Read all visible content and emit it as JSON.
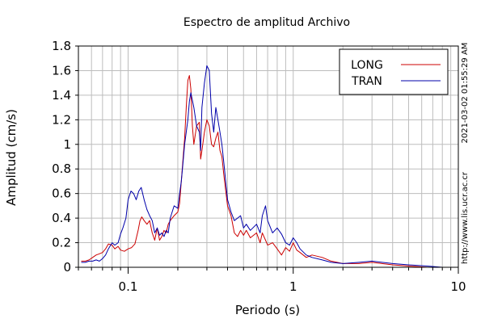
{
  "chart_data": {
    "type": "line",
    "title": "Espectro de amplitud Archivo",
    "xlabel": "Periodo (s)",
    "ylabel": "Amplitud (cm/s)",
    "x_scale": "log",
    "xlim": [
      0.05,
      10
    ],
    "ylim": [
      0,
      1.8
    ],
    "grid": true,
    "legend_position": "top-right",
    "x_ticks": [
      {
        "value": 0.1,
        "label": "0.1"
      },
      {
        "value": 1,
        "label": "1"
      },
      {
        "value": 10,
        "label": "10"
      }
    ],
    "y_ticks": [
      {
        "value": 0,
        "label": "0"
      },
      {
        "value": 0.2,
        "label": "0.2"
      },
      {
        "value": 0.4,
        "label": "0.4"
      },
      {
        "value": 0.6,
        "label": "0.6"
      },
      {
        "value": 0.8,
        "label": "0.8"
      },
      {
        "value": 1.0,
        "label": "1"
      },
      {
        "value": 1.2,
        "label": "1.2"
      },
      {
        "value": 1.4,
        "label": "1.4"
      },
      {
        "value": 1.6,
        "label": "1.6"
      },
      {
        "value": 1.8,
        "label": "1.8"
      }
    ],
    "series": [
      {
        "name": "LONG",
        "color": "#cc0000",
        "x": [
          0.052,
          0.055,
          0.058,
          0.061,
          0.064,
          0.067,
          0.07,
          0.073,
          0.076,
          0.08,
          0.083,
          0.087,
          0.09,
          0.095,
          0.1,
          0.105,
          0.11,
          0.115,
          0.118,
          0.121,
          0.125,
          0.13,
          0.135,
          0.14,
          0.145,
          0.15,
          0.155,
          0.16,
          0.165,
          0.17,
          0.175,
          0.18,
          0.19,
          0.2,
          0.205,
          0.21,
          0.215,
          0.22,
          0.225,
          0.23,
          0.235,
          0.24,
          0.245,
          0.25,
          0.26,
          0.27,
          0.275,
          0.28,
          0.29,
          0.3,
          0.31,
          0.32,
          0.33,
          0.34,
          0.35,
          0.36,
          0.37,
          0.38,
          0.4,
          0.42,
          0.44,
          0.46,
          0.48,
          0.5,
          0.52,
          0.55,
          0.6,
          0.63,
          0.65,
          0.68,
          0.7,
          0.75,
          0.8,
          0.85,
          0.9,
          0.95,
          1.0,
          1.05,
          1.1,
          1.2,
          1.3,
          1.5,
          1.7,
          2.0,
          2.5,
          3.0,
          4.0,
          5.0,
          6.5,
          8.0,
          10.0
        ],
        "y": [
          0.05,
          0.05,
          0.06,
          0.08,
          0.1,
          0.11,
          0.12,
          0.15,
          0.19,
          0.18,
          0.15,
          0.17,
          0.14,
          0.13,
          0.15,
          0.16,
          0.19,
          0.3,
          0.38,
          0.41,
          0.38,
          0.35,
          0.38,
          0.28,
          0.22,
          0.32,
          0.22,
          0.25,
          0.3,
          0.28,
          0.35,
          0.38,
          0.42,
          0.45,
          0.52,
          0.7,
          0.88,
          1.05,
          1.3,
          1.52,
          1.56,
          1.45,
          1.15,
          1.0,
          1.15,
          1.18,
          0.88,
          0.95,
          1.1,
          1.2,
          1.15,
          1.0,
          0.98,
          1.05,
          1.1,
          0.95,
          0.9,
          0.75,
          0.5,
          0.42,
          0.28,
          0.25,
          0.3,
          0.26,
          0.3,
          0.24,
          0.28,
          0.2,
          0.28,
          0.22,
          0.18,
          0.2,
          0.15,
          0.1,
          0.16,
          0.13,
          0.2,
          0.14,
          0.12,
          0.08,
          0.1,
          0.08,
          0.05,
          0.03,
          0.03,
          0.04,
          0.02,
          0.01,
          0.0,
          0.0,
          0.0
        ]
      },
      {
        "name": "TRAN",
        "color": "#0000aa",
        "x": [
          0.052,
          0.055,
          0.058,
          0.061,
          0.064,
          0.067,
          0.07,
          0.073,
          0.076,
          0.08,
          0.083,
          0.087,
          0.09,
          0.093,
          0.097,
          0.1,
          0.104,
          0.108,
          0.112,
          0.116,
          0.12,
          0.125,
          0.13,
          0.135,
          0.14,
          0.145,
          0.15,
          0.155,
          0.16,
          0.165,
          0.17,
          0.175,
          0.18,
          0.19,
          0.2,
          0.205,
          0.21,
          0.215,
          0.22,
          0.225,
          0.23,
          0.235,
          0.24,
          0.25,
          0.26,
          0.27,
          0.275,
          0.28,
          0.29,
          0.3,
          0.31,
          0.32,
          0.33,
          0.34,
          0.35,
          0.36,
          0.37,
          0.38,
          0.4,
          0.42,
          0.44,
          0.46,
          0.48,
          0.5,
          0.52,
          0.55,
          0.6,
          0.63,
          0.65,
          0.68,
          0.7,
          0.75,
          0.8,
          0.85,
          0.9,
          0.95,
          1.0,
          1.05,
          1.1,
          1.2,
          1.3,
          1.5,
          1.7,
          2.0,
          2.5,
          3.0,
          4.0,
          5.0,
          6.5,
          8.0,
          10.0
        ],
        "y": [
          0.04,
          0.04,
          0.05,
          0.05,
          0.06,
          0.05,
          0.07,
          0.1,
          0.15,
          0.2,
          0.18,
          0.2,
          0.27,
          0.32,
          0.4,
          0.55,
          0.62,
          0.6,
          0.55,
          0.62,
          0.65,
          0.55,
          0.47,
          0.42,
          0.38,
          0.28,
          0.32,
          0.26,
          0.28,
          0.25,
          0.3,
          0.28,
          0.4,
          0.5,
          0.48,
          0.6,
          0.7,
          0.85,
          1.0,
          1.1,
          1.2,
          1.35,
          1.42,
          1.3,
          1.15,
          1.1,
          0.95,
          1.3,
          1.5,
          1.64,
          1.6,
          1.25,
          1.1,
          1.3,
          1.2,
          1.1,
          1.0,
          0.85,
          0.55,
          0.45,
          0.38,
          0.4,
          0.42,
          0.32,
          0.35,
          0.3,
          0.35,
          0.28,
          0.42,
          0.5,
          0.38,
          0.28,
          0.32,
          0.27,
          0.2,
          0.18,
          0.24,
          0.2,
          0.15,
          0.1,
          0.08,
          0.06,
          0.04,
          0.03,
          0.04,
          0.05,
          0.03,
          0.02,
          0.01,
          0.0,
          0.0
        ]
      }
    ]
  },
  "side_text": {
    "timestamp": "2021-03-02 01:55:29 AM",
    "url": "http://www.lis.ucr.ac.cr"
  }
}
